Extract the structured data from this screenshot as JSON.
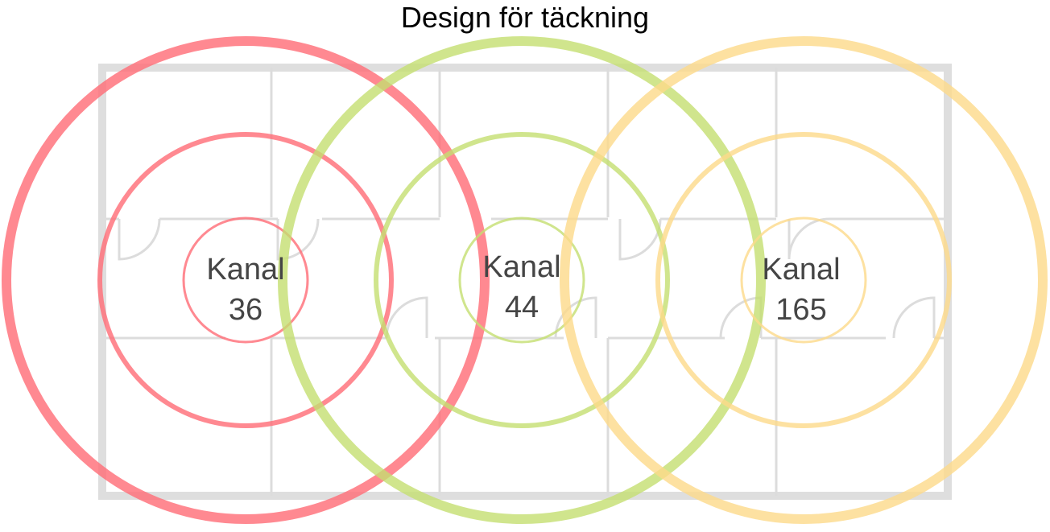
{
  "title": "Design för täckning",
  "access_points": [
    {
      "label": "Kanal",
      "channel": "36"
    },
    {
      "label": "Kanal",
      "channel": "44"
    },
    {
      "label": "Kanal",
      "channel": "165"
    }
  ]
}
